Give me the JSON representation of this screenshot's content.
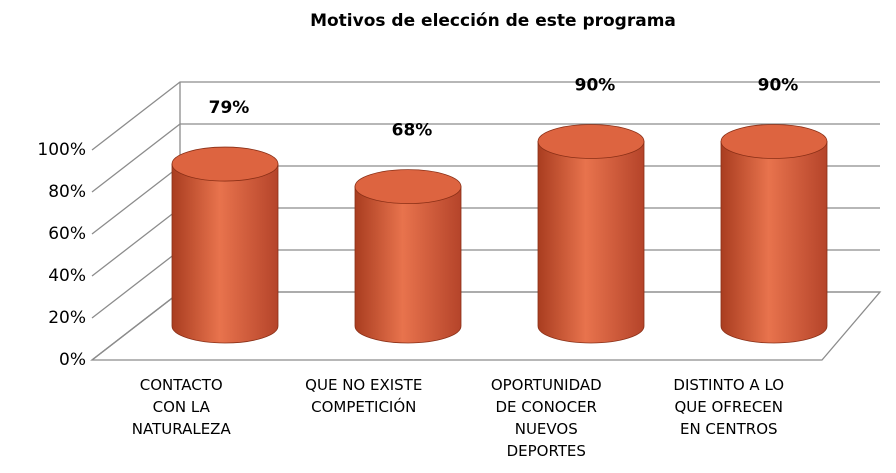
{
  "chart_data": {
    "type": "bar",
    "title": "Motivos de elección de este programa",
    "categories": [
      [
        "CONTACTO",
        "CON LA",
        "NATURALEZA"
      ],
      [
        "QUE NO EXISTE",
        "COMPETICIÓN"
      ],
      [
        "OPORTUNIDAD",
        "DE CONOCER",
        "NUEVOS",
        "DEPORTES"
      ],
      [
        "DISTINTO A LO",
        "QUE OFRECEN",
        "EN CENTROS"
      ]
    ],
    "values": [
      79,
      68,
      90,
      90
    ],
    "value_labels": [
      "79%",
      "68%",
      "90%",
      "90%"
    ],
    "color": "#d9603b",
    "ylim": [
      0,
      100
    ],
    "yticks": [
      {
        "value": 0,
        "label": "0%"
      },
      {
        "value": 20,
        "label": "20%"
      },
      {
        "value": 40,
        "label": "40%"
      },
      {
        "value": 60,
        "label": "60%"
      },
      {
        "value": 80,
        "label": "80%"
      },
      {
        "value": 100,
        "label": "100%"
      }
    ],
    "grid": true
  }
}
